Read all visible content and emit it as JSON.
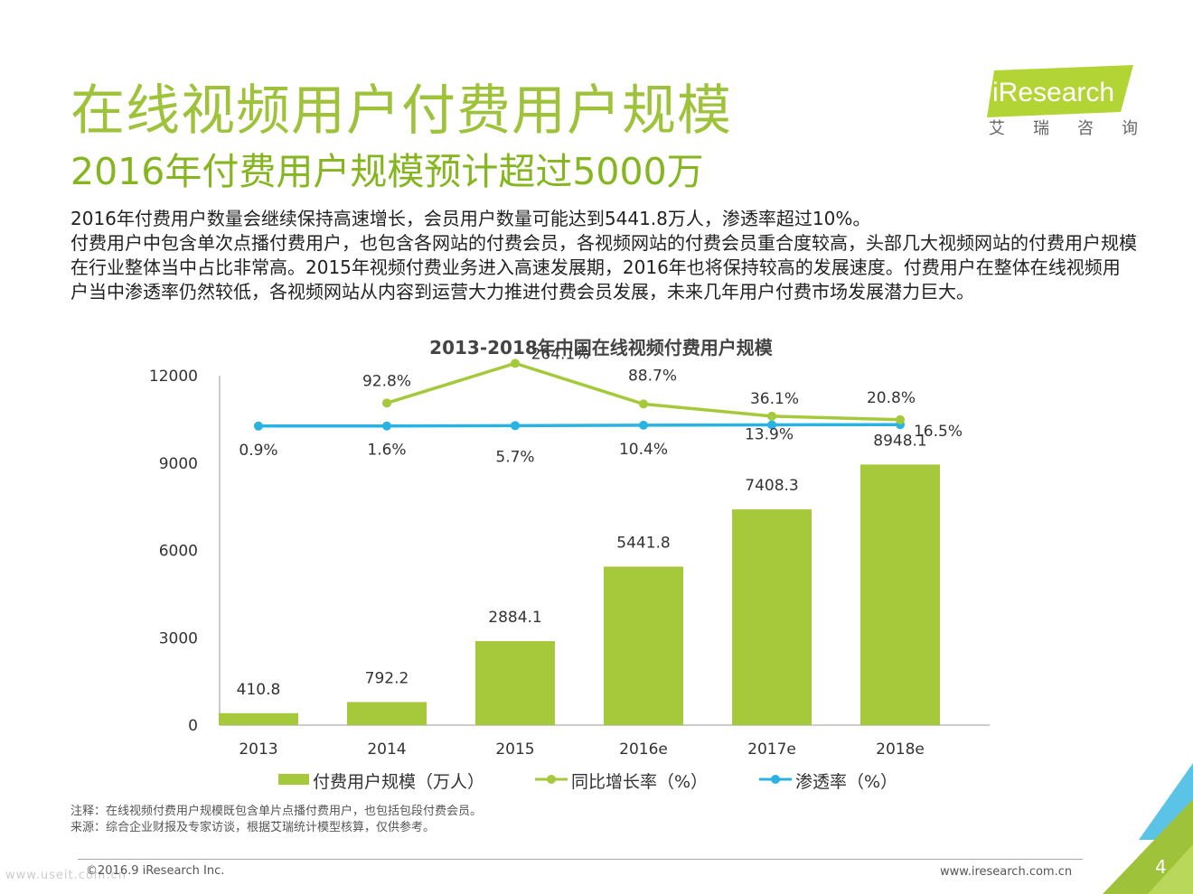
{
  "header": {
    "title": "在线视频用户付费用户规模",
    "subtitle": "2016年付费用户规模预计超过5000万"
  },
  "logo": {
    "brand": "iResearch",
    "chinese": "艾瑞咨询",
    "colors": {
      "green": "#b3d435",
      "text": "#ffffff"
    }
  },
  "body": {
    "line1": "2016年付费用户数量会继续保持高速增长，会员用户数量可能达到5441.8万人，渗透率超过10%。",
    "line2": "付费用户中包含单次点播付费用户，也包含各网站的付费会员，各视频网站的付费会员重合度较高，头部几大视频网站的付费用户规模在行业整体当中占比非常高。2015年视频付费业务进入高速发展期，2016年也将保持较高的发展速度。付费用户在整体在线视频用户当中渗透率仍然较低，各视频网站从内容到运营大力推进付费会员发展，未来几年用户付费市场发展潜力巨大。"
  },
  "chart_data": {
    "type": "bar",
    "title": "2013-2018年中国在线视频付费用户规模",
    "categories": [
      "2013",
      "2014",
      "2015",
      "2016e",
      "2017e",
      "2018e"
    ],
    "ylim": [
      0,
      12000
    ],
    "yticks": [
      "0",
      "3000",
      "6000",
      "9000",
      "12000"
    ],
    "grid": false,
    "legend_position": "bottom",
    "series": [
      {
        "name": "付费用户规模（万人）",
        "type": "bar",
        "color": "#a5c93a",
        "values": [
          410.8,
          792.2,
          2884.1,
          5441.8,
          7408.3,
          8948.1
        ],
        "labels": [
          "410.8",
          "792.2",
          "2884.1",
          "5441.8",
          "7408.3",
          "8948.1"
        ]
      },
      {
        "name": "同比增长率（%）",
        "type": "line",
        "color": "#a5c93a",
        "values": [
          null,
          92.8,
          264.1,
          88.7,
          36.1,
          20.8
        ],
        "labels": [
          "",
          "92.8%",
          "264.1%",
          "88.7%",
          "36.1%",
          "20.8%"
        ]
      },
      {
        "name": "渗透率（%）",
        "type": "line",
        "color": "#29b3e3",
        "values": [
          0.9,
          1.6,
          5.7,
          10.4,
          13.9,
          16.5
        ],
        "labels": [
          "0.9%",
          "1.6%",
          "5.7%",
          "10.4%",
          "13.9%",
          "16.5%"
        ]
      }
    ]
  },
  "footnotes": {
    "note": "注释：在线视频付费用户规模既包含单片点播付费用户，也包括包段付费会员。",
    "source": "来源：综合企业财报及专家访谈，根据艾瑞统计模型核算，仅供参考。"
  },
  "footer": {
    "copyright": "©2016.9 iResearch Inc.",
    "website": "www.iresearch.com.cn",
    "page": "4",
    "watermark": "www.useit.com.cn"
  }
}
